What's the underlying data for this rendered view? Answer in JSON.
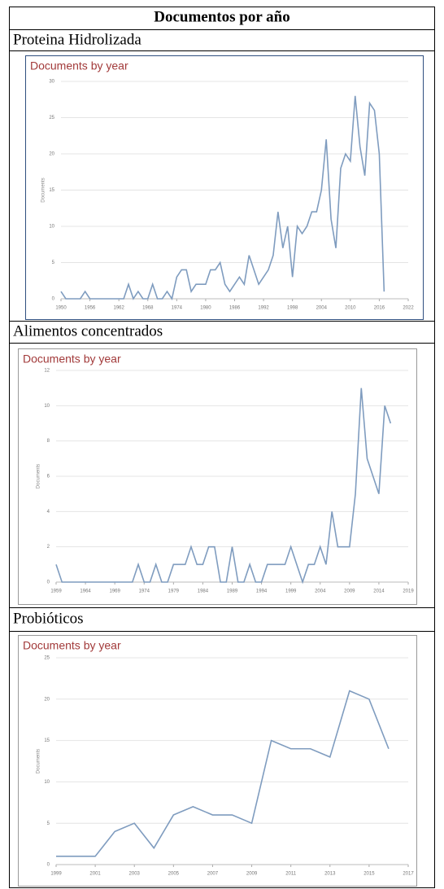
{
  "table": {
    "title": "Documentos por año",
    "rows": [
      "Proteina Hidrolizada",
      "Alimentos concentrados",
      "Probióticos"
    ]
  },
  "chart_data": [
    {
      "type": "line",
      "title": "Documents by year",
      "y_label": "Documents",
      "color": "#7f9cbf",
      "grid": true,
      "x": [
        1950,
        1951,
        1952,
        1953,
        1954,
        1955,
        1956,
        1957,
        1958,
        1959,
        1960,
        1961,
        1962,
        1963,
        1964,
        1965,
        1966,
        1967,
        1968,
        1969,
        1970,
        1971,
        1972,
        1973,
        1974,
        1975,
        1976,
        1977,
        1978,
        1979,
        1980,
        1981,
        1982,
        1983,
        1984,
        1985,
        1986,
        1987,
        1988,
        1989,
        1990,
        1991,
        1992,
        1993,
        1994,
        1995,
        1996,
        1997,
        1998,
        1999,
        2000,
        2001,
        2002,
        2003,
        2004,
        2005,
        2006,
        2007,
        2008,
        2009,
        2010,
        2011,
        2012,
        2013,
        2014,
        2015,
        2016,
        2017
      ],
      "values": [
        1,
        0,
        0,
        0,
        0,
        1,
        0,
        0,
        0,
        0,
        0,
        0,
        0,
        0,
        2,
        0,
        1,
        0,
        0,
        2,
        0,
        0,
        1,
        0,
        3,
        4,
        4,
        1,
        2,
        2,
        2,
        4,
        4,
        5,
        2,
        1,
        2,
        3,
        2,
        6,
        4,
        2,
        3,
        4,
        6,
        12,
        7,
        10,
        3,
        10,
        9,
        10,
        12,
        12,
        15,
        22,
        11,
        7,
        18,
        20,
        19,
        28,
        21,
        17,
        27,
        26,
        20,
        1
      ],
      "xlim": [
        1950,
        2022
      ],
      "xticks": [
        1950,
        1956,
        1962,
        1968,
        1974,
        1980,
        1986,
        1992,
        1998,
        2004,
        2010,
        2016,
        2022
      ],
      "ylim": [
        0,
        30
      ],
      "yticks": [
        0,
        5,
        10,
        15,
        20,
        25,
        30
      ]
    },
    {
      "type": "line",
      "title": "Documents by year",
      "y_label": "Documents",
      "color": "#7f9cbf",
      "grid": true,
      "x": [
        1959,
        1960,
        1961,
        1962,
        1963,
        1964,
        1965,
        1966,
        1967,
        1968,
        1969,
        1970,
        1971,
        1972,
        1973,
        1974,
        1975,
        1976,
        1977,
        1978,
        1979,
        1980,
        1981,
        1982,
        1983,
        1984,
        1985,
        1986,
        1987,
        1988,
        1989,
        1990,
        1991,
        1992,
        1993,
        1994,
        1995,
        1996,
        1997,
        1998,
        1999,
        2000,
        2001,
        2002,
        2003,
        2004,
        2005,
        2006,
        2007,
        2008,
        2009,
        2010,
        2011,
        2012,
        2013,
        2014,
        2015,
        2016
      ],
      "values": [
        1,
        0,
        0,
        0,
        0,
        0,
        0,
        0,
        0,
        0,
        0,
        0,
        0,
        0,
        1,
        0,
        0,
        1,
        0,
        0,
        1,
        1,
        1,
        2,
        1,
        1,
        2,
        2,
        0,
        0,
        2,
        0,
        0,
        1,
        0,
        0,
        1,
        1,
        1,
        1,
        2,
        1,
        0,
        1,
        1,
        2,
        1,
        4,
        2,
        2,
        2,
        5,
        11,
        7,
        6,
        5,
        10,
        9
      ],
      "xlim": [
        1959,
        2019
      ],
      "xticks": [
        1959,
        1964,
        1969,
        1974,
        1979,
        1984,
        1989,
        1994,
        1999,
        2004,
        2009,
        2014,
        2019
      ],
      "ylim": [
        0,
        12
      ],
      "yticks": [
        0,
        2,
        4,
        6,
        8,
        10,
        12
      ]
    },
    {
      "type": "line",
      "title": "Documents by year",
      "y_label": "Documents",
      "color": "#7f9cbf",
      "grid": true,
      "x": [
        1999,
        2000,
        2001,
        2002,
        2003,
        2004,
        2005,
        2006,
        2007,
        2008,
        2009,
        2010,
        2011,
        2012,
        2013,
        2014,
        2015,
        2016
      ],
      "values": [
        1,
        1,
        1,
        4,
        5,
        2,
        6,
        7,
        6,
        6,
        5,
        15,
        14,
        14,
        13,
        21,
        20,
        14
      ],
      "xlim": [
        1999,
        2017
      ],
      "xticks": [
        1999,
        2001,
        2003,
        2005,
        2007,
        2009,
        2011,
        2013,
        2015,
        2017
      ],
      "ylim": [
        0,
        25
      ],
      "yticks": [
        0,
        5,
        10,
        15,
        20,
        25
      ]
    }
  ]
}
